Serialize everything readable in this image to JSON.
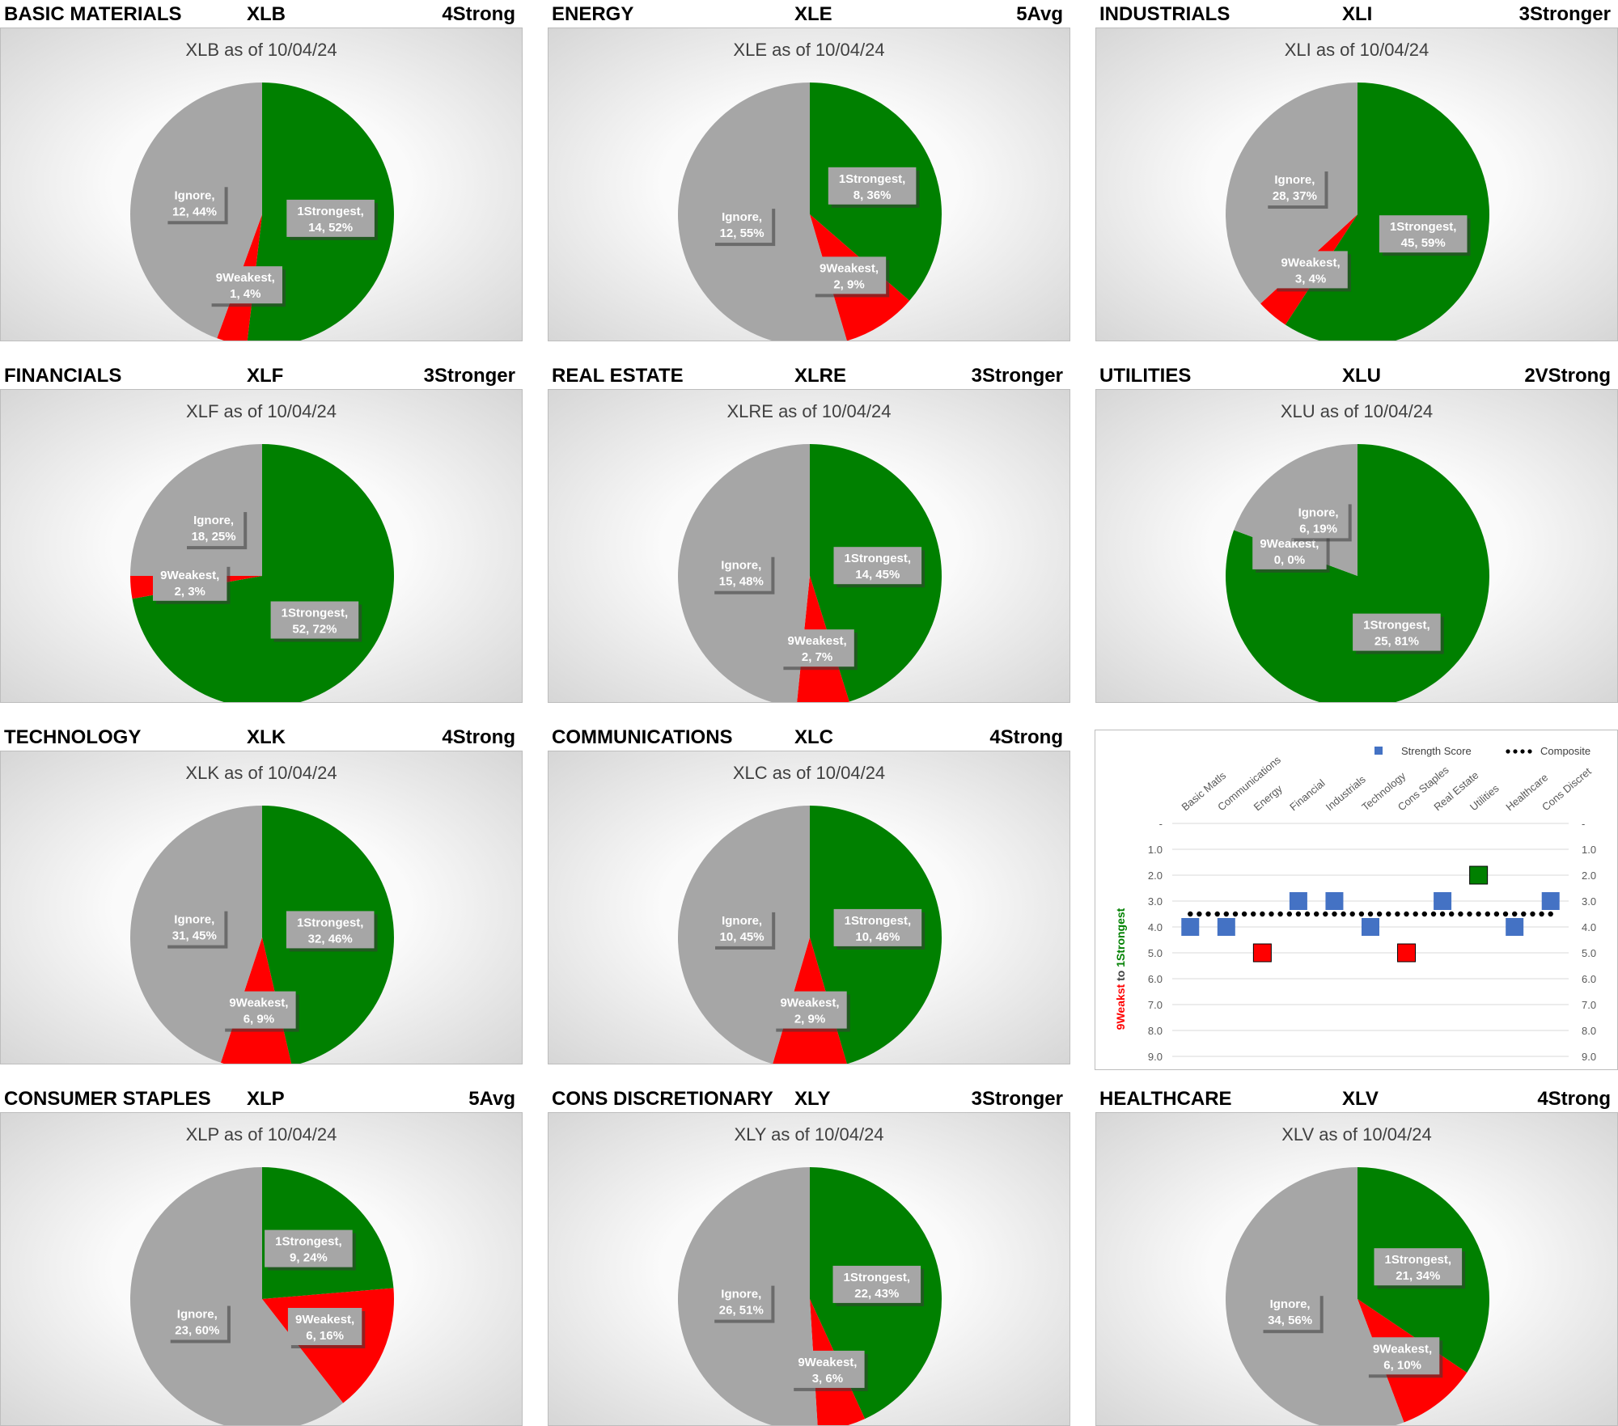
{
  "colors": {
    "strong": "#008000",
    "weak": "#ff0000",
    "ignore": "#a6a6a6",
    "score": "#4472c4",
    "label_box": "#a6a6a6"
  },
  "sectors": [
    {
      "sector": "BASIC MATERIALS",
      "etf": "XLB",
      "rating": "4Strong",
      "title": "XLB as of 10/04/24",
      "slices": [
        {
          "name": "1Strongest",
          "value": 14,
          "pct": "52%"
        },
        {
          "name": "9Weakest",
          "value": 1,
          "pct": "4%"
        },
        {
          "name": "Ignore",
          "value": 12,
          "pct": "44%"
        }
      ]
    },
    {
      "sector": "ENERGY",
      "etf": "XLE",
      "rating": "5Avg",
      "title": "XLE as of 10/04/24",
      "slices": [
        {
          "name": "1Strongest",
          "value": 8,
          "pct": "36%"
        },
        {
          "name": "9Weakest",
          "value": 2,
          "pct": "9%"
        },
        {
          "name": "Ignore",
          "value": 12,
          "pct": "55%"
        }
      ]
    },
    {
      "sector": "INDUSTRIALS",
      "etf": "XLI",
      "rating": "3Stronger",
      "title": "XLI as of 10/04/24",
      "slices": [
        {
          "name": "1Strongest",
          "value": 45,
          "pct": "59%"
        },
        {
          "name": "9Weakest",
          "value": 3,
          "pct": "4%"
        },
        {
          "name": "Ignore",
          "value": 28,
          "pct": "37%"
        }
      ]
    },
    {
      "sector": "FINANCIALS",
      "etf": "XLF",
      "rating": "3Stronger",
      "title": "XLF as of 10/04/24",
      "slices": [
        {
          "name": "1Strongest",
          "value": 52,
          "pct": "72%"
        },
        {
          "name": "9Weakest",
          "value": 2,
          "pct": "3%"
        },
        {
          "name": "Ignore",
          "value": 18,
          "pct": "25%"
        }
      ]
    },
    {
      "sector": "REAL ESTATE",
      "etf": "XLRE",
      "rating": "3Stronger",
      "title": "XLRE as of 10/04/24",
      "slices": [
        {
          "name": "1Strongest",
          "value": 14,
          "pct": "45%"
        },
        {
          "name": "9Weakest",
          "value": 2,
          "pct": "7%"
        },
        {
          "name": "Ignore",
          "value": 15,
          "pct": "48%"
        }
      ]
    },
    {
      "sector": "UTILITIES",
      "etf": "XLU",
      "rating": "2VStrong",
      "title": "XLU as of 10/04/24",
      "slices": [
        {
          "name": "1Strongest",
          "value": 25,
          "pct": "81%"
        },
        {
          "name": "9Weakest",
          "value": 0,
          "pct": "0%"
        },
        {
          "name": "Ignore",
          "value": 6,
          "pct": "19%"
        }
      ]
    },
    {
      "sector": "TECHNOLOGY",
      "etf": "XLK",
      "rating": "4Strong",
      "title": "XLK as of 10/04/24",
      "slices": [
        {
          "name": "1Strongest",
          "value": 32,
          "pct": "46%"
        },
        {
          "name": "9Weakest",
          "value": 6,
          "pct": "9%"
        },
        {
          "name": "Ignore",
          "value": 31,
          "pct": "45%"
        }
      ]
    },
    {
      "sector": "COMMUNICATIONS",
      "etf": "XLC",
      "rating": "4Strong",
      "title": "XLC as of 10/04/24",
      "slices": [
        {
          "name": "1Strongest",
          "value": 10,
          "pct": "46%"
        },
        {
          "name": "9Weakest",
          "value": 2,
          "pct": "9%"
        },
        {
          "name": "Ignore",
          "value": 10,
          "pct": "45%"
        }
      ]
    },
    {
      "sector": "CONSUMER STAPLES",
      "etf": "XLP",
      "rating": "5Avg",
      "title": "XLP as of 10/04/24",
      "slices": [
        {
          "name": "1Strongest",
          "value": 9,
          "pct": "24%"
        },
        {
          "name": "9Weakest",
          "value": 6,
          "pct": "16%"
        },
        {
          "name": "Ignore",
          "value": 23,
          "pct": "60%"
        }
      ]
    },
    {
      "sector": "CONS DISCRETIONARY",
      "etf": "XLY",
      "rating": "3Stronger",
      "title": "XLY as of 10/04/24",
      "slices": [
        {
          "name": "1Strongest",
          "value": 22,
          "pct": "43%"
        },
        {
          "name": "9Weakest",
          "value": 3,
          "pct": "6%"
        },
        {
          "name": "Ignore",
          "value": 26,
          "pct": "51%"
        }
      ]
    },
    {
      "sector": "HEALTHCARE",
      "etf": "XLV",
      "rating": "4Strong",
      "title": "XLV as of 10/04/24",
      "slices": [
        {
          "name": "1Strongest",
          "value": 21,
          "pct": "34%"
        },
        {
          "name": "9Weakest",
          "value": 6,
          "pct": "10%"
        },
        {
          "name": "Ignore",
          "value": 34,
          "pct": "56%"
        }
      ]
    }
  ],
  "chart_data": [
    {
      "type": "pie",
      "title": "XLB as of 10/04/24",
      "categories": [
        "1Strongest",
        "9Weakest",
        "Ignore"
      ],
      "values": [
        14,
        1,
        12
      ]
    },
    {
      "type": "pie",
      "title": "XLE as of 10/04/24",
      "categories": [
        "1Strongest",
        "9Weakest",
        "Ignore"
      ],
      "values": [
        8,
        2,
        12
      ]
    },
    {
      "type": "pie",
      "title": "XLI as of 10/04/24",
      "categories": [
        "1Strongest",
        "9Weakest",
        "Ignore"
      ],
      "values": [
        45,
        3,
        28
      ]
    },
    {
      "type": "pie",
      "title": "XLF as of 10/04/24",
      "categories": [
        "1Strongest",
        "9Weakest",
        "Ignore"
      ],
      "values": [
        52,
        2,
        18
      ]
    },
    {
      "type": "pie",
      "title": "XLRE as of 10/04/24",
      "categories": [
        "1Strongest",
        "9Weakest",
        "Ignore"
      ],
      "values": [
        14,
        2,
        15
      ]
    },
    {
      "type": "pie",
      "title": "XLU as of 10/04/24",
      "categories": [
        "1Strongest",
        "9Weakest",
        "Ignore"
      ],
      "values": [
        25,
        0,
        6
      ]
    },
    {
      "type": "pie",
      "title": "XLK as of 10/04/24",
      "categories": [
        "1Strongest",
        "9Weakest",
        "Ignore"
      ],
      "values": [
        32,
        6,
        31
      ]
    },
    {
      "type": "pie",
      "title": "XLC as of 10/04/24",
      "categories": [
        "1Strongest",
        "9Weakest",
        "Ignore"
      ],
      "values": [
        10,
        2,
        10
      ]
    },
    {
      "type": "pie",
      "title": "XLP as of 10/04/24",
      "categories": [
        "1Strongest",
        "9Weakest",
        "Ignore"
      ],
      "values": [
        9,
        6,
        23
      ]
    },
    {
      "type": "pie",
      "title": "XLY as of 10/04/24",
      "categories": [
        "1Strongest",
        "9Weakest",
        "Ignore"
      ],
      "values": [
        22,
        3,
        26
      ]
    },
    {
      "type": "pie",
      "title": "XLV as of 10/04/24",
      "categories": [
        "1Strongest",
        "9Weakest",
        "Ignore"
      ],
      "values": [
        21,
        6,
        34
      ]
    },
    {
      "type": "scatter",
      "categories": [
        "Basic Matls",
        "Communications",
        "Energy",
        "Financial",
        "Industrials",
        "Technology",
        "Cons Staples",
        "Real Estate",
        "Utilities",
        "Healthcare",
        "Cons Discret"
      ],
      "series": [
        {
          "name": "Strength Score",
          "values": [
            4,
            4,
            5,
            3,
            3,
            4,
            5,
            3,
            2,
            4,
            3
          ]
        },
        {
          "name": "Composite",
          "values": [
            3.5,
            3.5,
            3.5,
            3.5,
            3.5,
            3.5,
            3.5,
            3.5,
            3.5,
            3.5,
            3.5
          ]
        }
      ],
      "yticks": [
        "-",
        "1.0",
        "2.0",
        "3.0",
        "4.0",
        "5.0",
        "6.0",
        "7.0",
        "8.0",
        "9.0"
      ],
      "ylim": [
        0,
        9
      ],
      "yaxis_inverted": true,
      "ylabel_weak": "9Weakst",
      "ylabel_to": " to ",
      "ylabel_strong": "1Strongest",
      "legend": "top-right"
    }
  ]
}
